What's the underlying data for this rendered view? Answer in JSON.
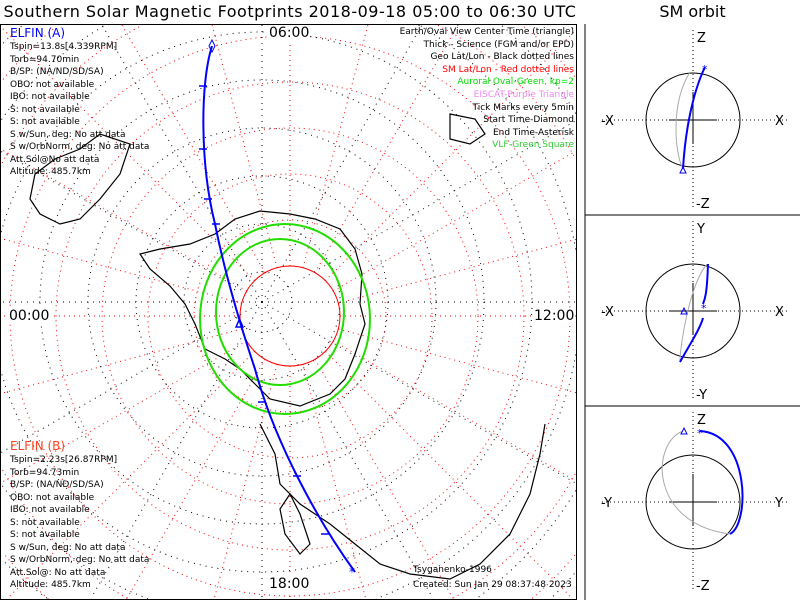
{
  "title": "Southern Solar Magnetic Footprints 2018-09-18 05:00 to 06:30 UTC",
  "sm_orbit_title": "SM orbit",
  "time_labels": {
    "top": "06:00",
    "left": "00:00",
    "right": "12:00",
    "bottom": "18:00"
  },
  "elfin_a": {
    "name": "ELFIN (A)",
    "color": "#0000ff",
    "lines": [
      "Tspin=13.8s[4.339RPM]",
      "Torb=94.70min",
      "B/SP: (NA/ND/SD/SA)",
      "OBO: not available",
      "IBO: not available",
      "S: not available",
      "S: not available",
      "S w/Sun, deg: No att data",
      "S w/OrbNorm, deg: No att data",
      "Att.Sol@No att data",
      "Altitude: 485.7km"
    ]
  },
  "elfin_b": {
    "name": "ELFIN (B)",
    "color": "#ff4020",
    "lines": [
      "Tspin=2.23s[26.87RPM]",
      "Torb=94.73min",
      "B/SP: (NA/ND/SD/SA)",
      "OBO: not available",
      "IBO: not available",
      "S: not available",
      "S: not available",
      "S w/Sun, deg: No att data",
      "S w/OrbNorm, deg: No att data",
      "Att.Sol@: No att data",
      "Altitude: 485.7km"
    ]
  },
  "legend": [
    {
      "text": "Earth/Oval View Center Time (triangle)",
      "color": "#000000"
    },
    {
      "text": "Thick - Science (FGM and/or EPD)",
      "color": "#000000"
    },
    {
      "text": "Geo Lat/Lon - Black dotted lines",
      "color": "#000000"
    },
    {
      "text": "SM Lat/Lon - Red dotted lines",
      "color": "#ff0000"
    },
    {
      "text": "Auroral Oval-Green, kp=2",
      "color": "#00dd00"
    },
    {
      "text": "EISCAT-Purple Triangle",
      "color": "#ee88ee"
    },
    {
      "text": "Tick Marks every 5min",
      "color": "#000000"
    },
    {
      "text": "Start Time-Diamond",
      "color": "#000000"
    },
    {
      "text": "End Time-Asterisk",
      "color": "#000000"
    },
    {
      "text": "VLF-Green Square",
      "color": "#33cc33"
    }
  ],
  "credits": {
    "model": "Tsyganenko-1996",
    "created": "Created: Sun Jan 29 08:37:48 2023"
  },
  "panels": [
    {
      "top": "Z",
      "bottom": "-Z",
      "left": "-X",
      "right": "X"
    },
    {
      "top": "Y",
      "bottom": "-Y",
      "left": "-X",
      "right": "X"
    },
    {
      "top": "Z",
      "bottom": "-Z",
      "left": "-Y",
      "right": "Y"
    }
  ]
}
